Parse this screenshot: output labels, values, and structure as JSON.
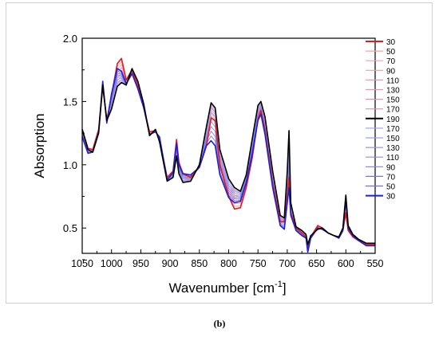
{
  "figure": {
    "caption": "(b)"
  },
  "chart_data": {
    "type": "line",
    "title": "",
    "xlabel": "Wavenumber [cm",
    "xlabel_sup": "-1",
    "xlabel_end": "]",
    "ylabel": "Absorption",
    "xlim": [
      1050,
      550
    ],
    "ylim": [
      0.3,
      2.0
    ],
    "x_reversed": true,
    "xticks": [
      1050,
      1000,
      950,
      900,
      850,
      800,
      750,
      700,
      650,
      600,
      550
    ],
    "yticks": [
      0.5,
      1.0,
      1.5,
      2.0
    ],
    "ytick_labels": [
      "0.5",
      "1.0",
      "1.5",
      "2.0"
    ],
    "grid": false,
    "legend_position": "right",
    "legend": [
      {
        "label": "30",
        "color": "#e31a1c",
        "width": 1.6
      },
      {
        "label": "50",
        "color": "#f4a3a3",
        "width": 0.8
      },
      {
        "label": "70",
        "color": "#f2a0a6",
        "width": 0.8
      },
      {
        "label": "90",
        "color": "#ee9eab",
        "width": 0.8
      },
      {
        "label": "110",
        "color": "#ea9aae",
        "width": 0.8
      },
      {
        "label": "130",
        "color": "#e597b4",
        "width": 0.8
      },
      {
        "label": "150",
        "color": "#df93ba",
        "width": 0.8
      },
      {
        "label": "170",
        "color": "#d88fc0",
        "width": 0.8
      },
      {
        "label": "190",
        "color": "#000000",
        "width": 1.6
      },
      {
        "label": "170",
        "color": "#a7a7f2",
        "width": 0.8
      },
      {
        "label": "150",
        "color": "#9d9df0",
        "width": 0.8
      },
      {
        "label": "130",
        "color": "#9494ef",
        "width": 0.8
      },
      {
        "label": "110",
        "color": "#8a8aed",
        "width": 0.8
      },
      {
        "label": "90",
        "color": "#8080ec",
        "width": 0.8
      },
      {
        "label": "70",
        "color": "#7676ea",
        "width": 0.8
      },
      {
        "label": "50",
        "color": "#6c6ce8",
        "width": 0.8
      },
      {
        "label": "30",
        "color": "#1f1fd6",
        "width": 1.6
      }
    ],
    "series_points": {
      "red": [
        [
          1050,
          1.28
        ],
        [
          1040,
          1.13
        ],
        [
          1032,
          1.12
        ],
        [
          1022,
          1.28
        ],
        [
          1015,
          1.62
        ],
        [
          1008,
          1.35
        ],
        [
          1000,
          1.55
        ],
        [
          990,
          1.8
        ],
        [
          983,
          1.84
        ],
        [
          975,
          1.67
        ],
        [
          965,
          1.75
        ],
        [
          955,
          1.62
        ],
        [
          945,
          1.45
        ],
        [
          935,
          1.26
        ],
        [
          925,
          1.27
        ],
        [
          918,
          1.2
        ],
        [
          905,
          0.9
        ],
        [
          895,
          0.95
        ],
        [
          889,
          1.2
        ],
        [
          885,
          1.02
        ],
        [
          878,
          0.93
        ],
        [
          865,
          0.9
        ],
        [
          850,
          0.98
        ],
        [
          838,
          1.15
        ],
        [
          830,
          1.37
        ],
        [
          823,
          1.35
        ],
        [
          815,
          1.0
        ],
        [
          800,
          0.75
        ],
        [
          790,
          0.65
        ],
        [
          780,
          0.66
        ],
        [
          770,
          0.82
        ],
        [
          760,
          1.05
        ],
        [
          750,
          1.36
        ],
        [
          745,
          1.43
        ],
        [
          738,
          1.27
        ],
        [
          725,
          0.85
        ],
        [
          712,
          0.55
        ],
        [
          705,
          0.55
        ],
        [
          700,
          0.75
        ],
        [
          697,
          0.9
        ],
        [
          694,
          0.62
        ],
        [
          685,
          0.5
        ],
        [
          675,
          0.46
        ],
        [
          668,
          0.43
        ],
        [
          665,
          0.33
        ],
        [
          660,
          0.43
        ],
        [
          648,
          0.52
        ],
        [
          640,
          0.5
        ],
        [
          630,
          0.46
        ],
        [
          620,
          0.44
        ],
        [
          612,
          0.42
        ],
        [
          605,
          0.48
        ],
        [
          600,
          0.62
        ],
        [
          596,
          0.48
        ],
        [
          588,
          0.43
        ],
        [
          578,
          0.4
        ],
        [
          565,
          0.37
        ],
        [
          550,
          0.37
        ]
      ],
      "black": [
        [
          1050,
          1.28
        ],
        [
          1040,
          1.12
        ],
        [
          1032,
          1.1
        ],
        [
          1022,
          1.25
        ],
        [
          1015,
          1.63
        ],
        [
          1008,
          1.35
        ],
        [
          1000,
          1.44
        ],
        [
          990,
          1.62
        ],
        [
          983,
          1.65
        ],
        [
          975,
          1.63
        ],
        [
          965,
          1.76
        ],
        [
          955,
          1.66
        ],
        [
          945,
          1.48
        ],
        [
          935,
          1.23
        ],
        [
          925,
          1.28
        ],
        [
          918,
          1.18
        ],
        [
          905,
          0.87
        ],
        [
          895,
          0.9
        ],
        [
          889,
          1.07
        ],
        [
          885,
          0.93
        ],
        [
          878,
          0.86
        ],
        [
          865,
          0.87
        ],
        [
          850,
          1.0
        ],
        [
          838,
          1.3
        ],
        [
          830,
          1.49
        ],
        [
          823,
          1.45
        ],
        [
          815,
          1.12
        ],
        [
          800,
          0.89
        ],
        [
          790,
          0.82
        ],
        [
          780,
          0.79
        ],
        [
          770,
          0.92
        ],
        [
          760,
          1.2
        ],
        [
          750,
          1.47
        ],
        [
          745,
          1.5
        ],
        [
          738,
          1.38
        ],
        [
          725,
          0.95
        ],
        [
          712,
          0.6
        ],
        [
          705,
          0.58
        ],
        [
          700,
          0.95
        ],
        [
          697,
          1.27
        ],
        [
          694,
          0.7
        ],
        [
          685,
          0.51
        ],
        [
          675,
          0.48
        ],
        [
          668,
          0.45
        ],
        [
          665,
          0.37
        ],
        [
          660,
          0.44
        ],
        [
          648,
          0.49
        ],
        [
          640,
          0.5
        ],
        [
          630,
          0.46
        ],
        [
          620,
          0.44
        ],
        [
          612,
          0.43
        ],
        [
          605,
          0.5
        ],
        [
          600,
          0.76
        ],
        [
          596,
          0.52
        ],
        [
          588,
          0.45
        ],
        [
          578,
          0.41
        ],
        [
          565,
          0.38
        ],
        [
          550,
          0.38
        ]
      ],
      "blue": [
        [
          1050,
          1.22
        ],
        [
          1040,
          1.09
        ],
        [
          1032,
          1.1
        ],
        [
          1022,
          1.26
        ],
        [
          1015,
          1.66
        ],
        [
          1008,
          1.33
        ],
        [
          1000,
          1.56
        ],
        [
          990,
          1.76
        ],
        [
          983,
          1.74
        ],
        [
          975,
          1.64
        ],
        [
          965,
          1.72
        ],
        [
          955,
          1.6
        ],
        [
          945,
          1.45
        ],
        [
          935,
          1.24
        ],
        [
          925,
          1.26
        ],
        [
          918,
          1.22
        ],
        [
          905,
          0.88
        ],
        [
          895,
          0.94
        ],
        [
          889,
          1.17
        ],
        [
          885,
          1.0
        ],
        [
          878,
          0.93
        ],
        [
          865,
          0.92
        ],
        [
          850,
          0.98
        ],
        [
          838,
          1.15
        ],
        [
          830,
          1.19
        ],
        [
          823,
          1.15
        ],
        [
          815,
          0.92
        ],
        [
          800,
          0.74
        ],
        [
          790,
          0.7
        ],
        [
          780,
          0.71
        ],
        [
          770,
          0.86
        ],
        [
          760,
          1.08
        ],
        [
          750,
          1.35
        ],
        [
          745,
          1.4
        ],
        [
          738,
          1.24
        ],
        [
          725,
          0.82
        ],
        [
          712,
          0.52
        ],
        [
          705,
          0.49
        ],
        [
          700,
          0.7
        ],
        [
          697,
          0.82
        ],
        [
          694,
          0.6
        ],
        [
          685,
          0.48
        ],
        [
          675,
          0.44
        ],
        [
          668,
          0.42
        ],
        [
          665,
          0.31
        ],
        [
          660,
          0.42
        ],
        [
          648,
          0.5
        ],
        [
          640,
          0.49
        ],
        [
          630,
          0.46
        ],
        [
          620,
          0.44
        ],
        [
          612,
          0.42
        ],
        [
          605,
          0.48
        ],
        [
          600,
          0.72
        ],
        [
          596,
          0.5
        ],
        [
          588,
          0.44
        ],
        [
          578,
          0.4
        ],
        [
          565,
          0.36
        ],
        [
          550,
          0.36
        ]
      ]
    }
  }
}
